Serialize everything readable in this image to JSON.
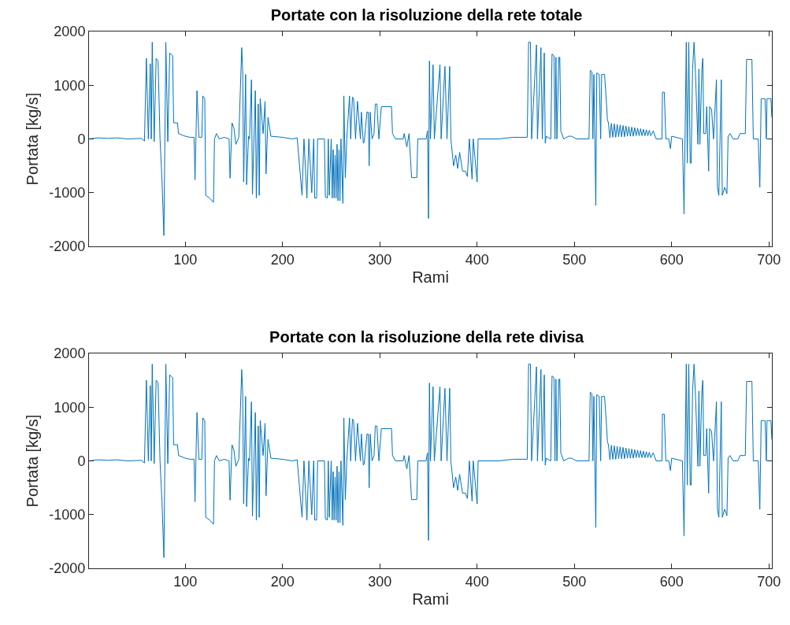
{
  "chart_data": [
    {
      "type": "line",
      "title": "Portate con la risoluzione della rete totale",
      "xlabel": "Rami",
      "ylabel": "Portata [kg/s]",
      "color": "#0072bd",
      "xlim": [
        1,
        703
      ],
      "ylim": [
        -2000,
        2000
      ],
      "xticks": [
        100,
        200,
        300,
        400,
        500,
        600,
        700
      ],
      "yticks": [
        -2000,
        -1000,
        0,
        1000,
        2000
      ],
      "x": [
        1,
        10,
        20,
        30,
        40,
        55,
        58,
        60,
        62,
        64,
        65,
        66,
        68,
        70,
        72,
        74,
        76,
        78,
        80,
        82,
        84,
        87,
        88,
        92,
        93,
        100,
        105,
        109,
        110,
        112,
        114,
        117,
        118,
        120,
        121,
        125,
        129,
        130,
        132,
        135,
        140,
        145,
        146,
        148,
        150,
        152,
        155,
        158,
        159,
        160,
        162,
        163,
        165,
        166,
        168,
        169,
        172,
        173,
        175,
        176,
        177,
        180,
        182,
        183,
        185,
        188,
        200,
        210,
        215,
        220,
        222,
        225,
        227,
        230,
        232,
        233,
        235,
        236,
        243,
        244,
        246,
        247,
        248,
        250,
        251,
        252,
        253,
        254,
        255,
        256,
        257,
        258,
        259,
        260,
        262,
        263,
        264.5,
        266,
        268.8,
        270,
        271.8,
        273,
        275,
        277,
        280,
        281,
        283,
        284,
        286.7,
        288,
        289,
        290,
        292,
        294,
        295.3,
        297,
        299,
        301.5,
        312,
        313,
        316,
        324,
        325,
        327.7,
        330,
        332.6,
        338,
        339,
        347.5,
        349,
        350,
        351,
        352,
        354.7,
        356,
        361.8,
        363,
        366.9,
        369,
        371.8,
        373,
        375.8,
        378,
        380,
        382,
        385,
        388,
        390,
        392,
        394.8,
        396,
        400,
        401,
        422,
        437,
        451.5,
        452.9,
        454.8,
        456,
        461,
        462,
        465.6,
        467,
        469,
        470,
        471,
        475.7,
        477,
        479,
        480,
        481,
        482,
        484,
        485,
        486,
        489,
        494,
        497,
        502,
        515,
        516.3,
        518,
        519,
        520,
        522,
        523,
        525.5,
        527,
        528,
        531,
        532.5,
        534,
        535,
        536.5,
        538,
        539.5,
        541,
        542.5,
        544,
        545.5,
        547,
        548.5,
        550,
        551.5,
        553,
        554.5,
        556,
        557.5,
        559,
        560.5,
        562,
        563.5,
        565,
        566.5,
        568,
        569.5,
        571,
        572.5,
        574,
        575.5,
        577,
        578.5,
        581,
        584,
        590,
        590.5,
        592.4,
        594,
        597,
        598.7,
        600,
        611,
        612.7,
        615,
        616,
        617.6,
        619,
        620,
        621.5,
        623,
        624.5,
        627,
        628,
        629,
        631,
        632,
        633,
        635,
        636,
        638,
        639,
        641,
        643,
        646,
        647,
        648.5,
        651,
        652,
        654.5,
        656.8,
        658,
        660,
        663,
        668,
        670.3,
        675.7,
        677,
        682.5,
        683.9,
        689,
        690.6,
        692,
        696,
        697.3,
        698,
        702,
        703
      ],
      "values": [
        0,
        20,
        10,
        20,
        0,
        10,
        -40,
        1500,
        0,
        1400,
        0,
        1800,
        -50,
        1500,
        1450,
        0,
        -750,
        -1800,
        1800,
        -50,
        1600,
        1550,
        300,
        300,
        100,
        50,
        30,
        30,
        -760,
        900,
        30,
        30,
        800,
        750,
        -1050,
        -1100,
        -1180,
        0,
        100,
        0,
        30,
        0,
        -730,
        300,
        200,
        -100,
        30,
        1700,
        1250,
        -800,
        1200,
        -850,
        50,
        0,
        1100,
        -1030,
        900,
        -1100,
        650,
        -1050,
        750,
        100,
        700,
        -650,
        400,
        50,
        30,
        0,
        20,
        -1050,
        0,
        -1100,
        0,
        -1000,
        0,
        -1100,
        -1100,
        0,
        0,
        -1080,
        -1100,
        0,
        -1050,
        0,
        -1100,
        -200,
        -1100,
        -300,
        -1100,
        -100,
        -1150,
        -200,
        -1150,
        0,
        -1200,
        800,
        -720,
        0,
        800,
        0,
        780,
        750,
        0,
        700,
        0,
        500,
        -80,
        -50,
        500,
        500,
        -500,
        500,
        0,
        100,
        650,
        650,
        0,
        600,
        600,
        100,
        0,
        0,
        100,
        -150,
        100,
        -720,
        -720,
        0,
        0,
        150,
        -1480,
        1450,
        0,
        1380,
        0,
        1380,
        0,
        1350,
        0,
        1350,
        0,
        -500,
        -300,
        -550,
        -250,
        -600,
        -600,
        -700,
        0,
        -750,
        0,
        -800,
        0,
        0,
        30,
        30,
        1800,
        1800,
        0,
        1750,
        0,
        1700,
        0,
        1600,
        -80,
        50,
        0,
        1580,
        1550,
        0,
        1520,
        0,
        1520,
        1520,
        150,
        0,
        50,
        50,
        0,
        0,
        1280,
        1250,
        0,
        1200,
        -1240,
        1230,
        1200,
        0,
        1200,
        1200,
        800,
        350,
        300,
        20,
        290,
        30,
        280,
        30,
        270,
        40,
        260,
        40,
        250,
        40,
        240,
        50,
        230,
        50,
        220,
        50,
        210,
        60,
        200,
        60,
        190,
        60,
        180,
        60,
        170,
        60,
        160,
        60,
        150,
        0,
        0,
        870,
        870,
        0,
        0,
        -180,
        50,
        0,
        -1400,
        1800,
        -450,
        1800,
        -450,
        -450,
        1300,
        1800,
        1200,
        -100,
        1300,
        -100,
        1300,
        1500,
        100,
        100,
        600,
        -600,
        600,
        550,
        0,
        1100,
        -900,
        -1050,
        1100,
        -1050,
        -900,
        -1020,
        50,
        100,
        0,
        0,
        100,
        100,
        1480,
        1480,
        0,
        0,
        -900,
        750,
        750,
        0,
        750,
        750,
        400
      ]
    },
    {
      "type": "line",
      "title": "Portate con la risoluzione della rete divisa",
      "xlabel": "Rami",
      "ylabel": "Portata [kg/s]",
      "color": "#0072bd",
      "xlim": [
        1,
        703
      ],
      "ylim": [
        -2000,
        2000
      ],
      "xticks": [
        100,
        200,
        300,
        400,
        500,
        600,
        700
      ],
      "yticks": [
        -2000,
        -1000,
        0,
        1000,
        2000
      ],
      "x": [
        1,
        10,
        20,
        30,
        40,
        55,
        58,
        60,
        62,
        64,
        65,
        66,
        68,
        70,
        72,
        74,
        76,
        78,
        80,
        82,
        84,
        87,
        88,
        92,
        93,
        100,
        105,
        109,
        110,
        112,
        114,
        117,
        118,
        120,
        121,
        125,
        129,
        130,
        132,
        135,
        140,
        145,
        146,
        148,
        150,
        152,
        155,
        158,
        159,
        160,
        162,
        163,
        165,
        166,
        168,
        169,
        172,
        173,
        175,
        176,
        177,
        180,
        182,
        183,
        185,
        188,
        200,
        210,
        215,
        220,
        222,
        225,
        227,
        230,
        232,
        233,
        235,
        236,
        243,
        244,
        246,
        247,
        248,
        250,
        251,
        252,
        253,
        254,
        255,
        256,
        257,
        258,
        259,
        260,
        262,
        263,
        264.5,
        266,
        268.8,
        270,
        271.8,
        273,
        275,
        277,
        280,
        281,
        283,
        284,
        286.7,
        288,
        289,
        290,
        292,
        294,
        295.3,
        297,
        299,
        301.5,
        312,
        313,
        316,
        324,
        325,
        327.7,
        330,
        332.6,
        338,
        339,
        347.5,
        349,
        350,
        351,
        352,
        354.7,
        356,
        361.8,
        363,
        366.9,
        369,
        371.8,
        373,
        375.8,
        378,
        380,
        382,
        385,
        388,
        390,
        392,
        394.8,
        396,
        400,
        401,
        422,
        437,
        451.5,
        452.9,
        454.8,
        456,
        461,
        462,
        465.6,
        467,
        469,
        470,
        471,
        475.7,
        477,
        479,
        480,
        481,
        482,
        484,
        485,
        486,
        489,
        494,
        497,
        502,
        515,
        516.3,
        518,
        519,
        520,
        522,
        523,
        525.5,
        527,
        528,
        531,
        532.5,
        534,
        535,
        536.5,
        538,
        539.5,
        541,
        542.5,
        544,
        545.5,
        547,
        548.5,
        550,
        551.5,
        553,
        554.5,
        556,
        557.5,
        559,
        560.5,
        562,
        563.5,
        565,
        566.5,
        568,
        569.5,
        571,
        572.5,
        574,
        575.5,
        577,
        578.5,
        581,
        584,
        590,
        590.5,
        592.4,
        594,
        597,
        598.7,
        600,
        611,
        612.7,
        615,
        616,
        617.6,
        619,
        620,
        621.5,
        623,
        624.5,
        627,
        628,
        629,
        631,
        632,
        633,
        635,
        636,
        638,
        639,
        641,
        643,
        646,
        647,
        648.5,
        651,
        652,
        654.5,
        656.8,
        658,
        660,
        663,
        668,
        670.3,
        675.7,
        677,
        682.5,
        683.9,
        689,
        690.6,
        692,
        696,
        697.3,
        698,
        702,
        703
      ],
      "values": [
        0,
        20,
        10,
        20,
        0,
        10,
        -40,
        1500,
        0,
        1400,
        0,
        1800,
        -50,
        1500,
        1450,
        0,
        -750,
        -1800,
        1800,
        -50,
        1600,
        1550,
        300,
        300,
        100,
        50,
        30,
        30,
        -760,
        900,
        30,
        30,
        800,
        750,
        -1050,
        -1100,
        -1180,
        0,
        100,
        0,
        30,
        0,
        -730,
        300,
        200,
        -100,
        30,
        1700,
        1250,
        -800,
        1200,
        -850,
        50,
        0,
        1100,
        -1030,
        900,
        -1100,
        650,
        -1050,
        750,
        100,
        700,
        -650,
        400,
        50,
        30,
        0,
        20,
        -1050,
        0,
        -1100,
        0,
        -1000,
        0,
        -1100,
        -1100,
        0,
        0,
        -1080,
        -1100,
        0,
        -1050,
        0,
        -1100,
        -200,
        -1100,
        -300,
        -1100,
        -100,
        -1150,
        -200,
        -1150,
        0,
        -1200,
        800,
        -720,
        0,
        800,
        0,
        780,
        750,
        0,
        700,
        0,
        500,
        -80,
        -50,
        500,
        500,
        -500,
        500,
        0,
        100,
        650,
        650,
        0,
        600,
        600,
        100,
        0,
        0,
        100,
        -150,
        100,
        -720,
        -720,
        0,
        0,
        150,
        -1480,
        1450,
        0,
        1380,
        0,
        1380,
        0,
        1350,
        0,
        1350,
        0,
        -500,
        -300,
        -550,
        -250,
        -600,
        -600,
        -700,
        0,
        -750,
        0,
        -800,
        0,
        0,
        30,
        30,
        1800,
        1800,
        0,
        1750,
        0,
        1700,
        0,
        1600,
        -80,
        50,
        0,
        1580,
        1550,
        0,
        1520,
        0,
        1520,
        1520,
        150,
        0,
        50,
        50,
        0,
        0,
        1280,
        1250,
        0,
        1200,
        -1240,
        1230,
        1200,
        0,
        1200,
        1200,
        800,
        350,
        300,
        20,
        290,
        30,
        280,
        30,
        270,
        40,
        260,
        40,
        250,
        40,
        240,
        50,
        230,
        50,
        220,
        50,
        210,
        60,
        200,
        60,
        190,
        60,
        180,
        60,
        170,
        60,
        160,
        60,
        150,
        0,
        0,
        870,
        870,
        0,
        0,
        -180,
        50,
        0,
        -1400,
        1800,
        -450,
        1800,
        -450,
        -450,
        1300,
        1800,
        1200,
        -100,
        1300,
        -100,
        1300,
        1500,
        100,
        100,
        600,
        -600,
        600,
        550,
        0,
        1100,
        -900,
        -1050,
        1100,
        -1050,
        -900,
        -1020,
        50,
        100,
        0,
        0,
        100,
        100,
        1480,
        1480,
        0,
        0,
        -900,
        750,
        750,
        0,
        750,
        750,
        400
      ]
    }
  ]
}
